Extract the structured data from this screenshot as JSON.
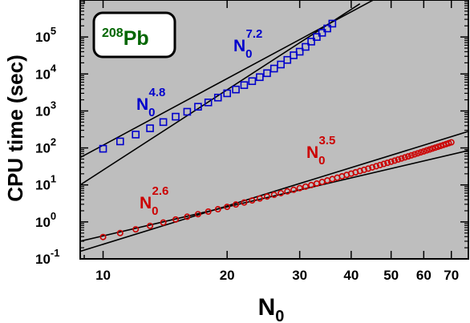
{
  "chart_data": {
    "type": "scatter",
    "x_scale": "log",
    "y_scale": "log",
    "xlim": [
      8.8,
      77
    ],
    "ylim": [
      0.1,
      1000000
    ],
    "background_color": "#bebebe",
    "grid": false,
    "legend": "none",
    "xlabel": {
      "main": "N",
      "sub": "0"
    },
    "ylabel": "CPU time (sec)",
    "x_ticks": [
      {
        "value": 10,
        "label": "10"
      },
      {
        "value": 20,
        "label": "20"
      },
      {
        "value": 30,
        "label": "30"
      },
      {
        "value": 40,
        "label": "40"
      },
      {
        "value": 50,
        "label": "50"
      },
      {
        "value": 60,
        "label": "60"
      },
      {
        "value": 70,
        "label": "70"
      }
    ],
    "y_ticks": [
      {
        "value": 0.1,
        "base": "10",
        "exp": "-1"
      },
      {
        "value": 1,
        "base": "10",
        "exp": "0"
      },
      {
        "value": 10,
        "base": "10",
        "exp": "1"
      },
      {
        "value": 100,
        "base": "10",
        "exp": "2"
      },
      {
        "value": 1000,
        "base": "10",
        "exp": "3"
      },
      {
        "value": 10000,
        "base": "10",
        "exp": "4"
      },
      {
        "value": 100000,
        "base": "10",
        "exp": "5"
      }
    ],
    "nucleus_label": {
      "mass": "208",
      "symbol": "Pb",
      "color": "#006600"
    },
    "series": [
      {
        "marker": "square",
        "color": "#0000cc",
        "points": [
          [
            10,
            95
          ],
          [
            11,
            150
          ],
          [
            12,
            230
          ],
          [
            13,
            340
          ],
          [
            14,
            500
          ],
          [
            15,
            700
          ],
          [
            16,
            950
          ],
          [
            17,
            1300
          ],
          [
            18,
            1700
          ],
          [
            19,
            2300
          ],
          [
            20,
            3000
          ],
          [
            21,
            3800
          ],
          [
            22,
            5000
          ],
          [
            23,
            6400
          ],
          [
            24,
            8200
          ],
          [
            25,
            10500
          ],
          [
            26,
            14000
          ],
          [
            27,
            18000
          ],
          [
            28,
            24000
          ],
          [
            29,
            32000
          ],
          [
            30,
            40000
          ],
          [
            31,
            54000
          ],
          [
            32,
            75000
          ],
          [
            33,
            100000
          ],
          [
            34,
            130000
          ],
          [
            35,
            170000
          ],
          [
            36,
            230000
          ]
        ]
      },
      {
        "marker": "circle",
        "color": "#cc0000",
        "points": [
          [
            10,
            0.39
          ],
          [
            11,
            0.5
          ],
          [
            12,
            0.63
          ],
          [
            13,
            0.78
          ],
          [
            14,
            0.96
          ],
          [
            15,
            1.16
          ],
          [
            16,
            1.38
          ],
          [
            17,
            1.62
          ],
          [
            18,
            1.9
          ],
          [
            19,
            2.2
          ],
          [
            20,
            2.55
          ],
          [
            21,
            2.95
          ],
          [
            22,
            3.35
          ],
          [
            23,
            3.8
          ],
          [
            24,
            4.3
          ],
          [
            25,
            4.85
          ],
          [
            26,
            5.4
          ],
          [
            27,
            6.0
          ],
          [
            28,
            6.7
          ],
          [
            29,
            7.4
          ],
          [
            30,
            8.2
          ],
          [
            31,
            9.0
          ],
          [
            32,
            9.9
          ],
          [
            33,
            10.9
          ],
          [
            34,
            12.0
          ],
          [
            35,
            13.2
          ],
          [
            36,
            14.4
          ],
          [
            37,
            15.7
          ],
          [
            38,
            17.1
          ],
          [
            39,
            18.6
          ],
          [
            40,
            20.2
          ],
          [
            41,
            21.9
          ],
          [
            42,
            23.7
          ],
          [
            43,
            25.6
          ],
          [
            44,
            27.6
          ],
          [
            45,
            29.8
          ],
          [
            46,
            32
          ],
          [
            47,
            34.4
          ],
          [
            48,
            36.9
          ],
          [
            49,
            39.6
          ],
          [
            50,
            42.4
          ],
          [
            51,
            45.4
          ],
          [
            52,
            48.6
          ],
          [
            53,
            51.9
          ],
          [
            54,
            55.4
          ],
          [
            55,
            59.1
          ],
          [
            56,
            63
          ],
          [
            57,
            67.1
          ],
          [
            58,
            71.4
          ],
          [
            59,
            75.9
          ],
          [
            60,
            80.6
          ],
          [
            61,
            85.6
          ],
          [
            62,
            90.8
          ],
          [
            63,
            96.2
          ],
          [
            64,
            101.9
          ],
          [
            65,
            107.8
          ],
          [
            66,
            114
          ],
          [
            67,
            120.5
          ],
          [
            68,
            127.3
          ],
          [
            69,
            134.4
          ],
          [
            70,
            141.8
          ]
        ]
      }
    ],
    "fit_lines": [
      {
        "base": "N",
        "sub": "0",
        "exponent": "4.8",
        "color": "#000000",
        "label_color": "#0000cc",
        "from": [
          8.8,
          55
        ],
        "to": [
          52,
          2300000
        ]
      },
      {
        "base": "N",
        "sub": "0",
        "exponent": "7.2",
        "color": "#000000",
        "label_color": "#0000cc",
        "from": [
          8.8,
          10
        ],
        "to": [
          42,
          790000
        ]
      },
      {
        "base": "N",
        "sub": "0",
        "exponent": "2.6",
        "color": "#000000",
        "label_color": "#cc0000",
        "from": [
          8.8,
          0.3
        ],
        "to": [
          77,
          85
        ]
      },
      {
        "base": "N",
        "sub": "0",
        "exponent": "3.5",
        "color": "#000000",
        "label_color": "#cc0000",
        "from": [
          8.8,
          0.16
        ],
        "to": [
          77,
          280
        ]
      }
    ]
  }
}
